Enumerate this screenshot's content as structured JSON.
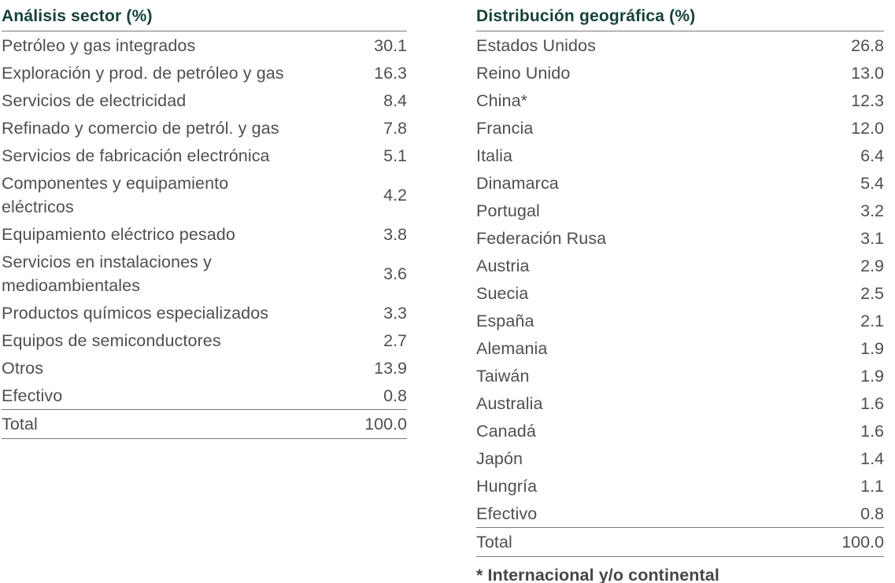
{
  "colors": {
    "heading": "#16423b",
    "body": "#4e4f51",
    "rule": "#7a7a7a",
    "background": "#ffffff"
  },
  "tables": [
    {
      "title": "Análisis sector (%)",
      "rows": [
        {
          "label": "Petróleo y gas integrados",
          "value": "30.1"
        },
        {
          "label": "Exploración y prod. de petróleo y gas",
          "value": "16.3"
        },
        {
          "label": "Servicios de electricidad",
          "value": "8.4"
        },
        {
          "label": "Refinado y comercio de petról. y gas",
          "value": "7.8"
        },
        {
          "label": "Servicios de fabricación electrónica",
          "value": "5.1"
        },
        {
          "label": "Componentes y equipamiento\neléctricos",
          "value": "4.2"
        },
        {
          "label": "Equipamiento eléctrico pesado",
          "value": "3.8"
        },
        {
          "label": "Servicios en instalaciones y\nmedioambientales",
          "value": "3.6"
        },
        {
          "label": "Productos químicos especializados",
          "value": "3.3"
        },
        {
          "label": "Equipos de semiconductores",
          "value": "2.7"
        },
        {
          "label": "Otros",
          "value": "13.9"
        },
        {
          "label": "Efectivo",
          "value": "0.8"
        }
      ],
      "total": {
        "label": "Total",
        "value": "100.0"
      }
    },
    {
      "title": "Distribución geográfica (%)",
      "rows": [
        {
          "label": "Estados Unidos",
          "value": "26.8"
        },
        {
          "label": "Reino Unido",
          "value": "13.0"
        },
        {
          "label": "China*",
          "value": "12.3"
        },
        {
          "label": "Francia",
          "value": "12.0"
        },
        {
          "label": "Italia",
          "value": "6.4"
        },
        {
          "label": "Dinamarca",
          "value": "5.4"
        },
        {
          "label": "Portugal",
          "value": "3.2"
        },
        {
          "label": "Federación Rusa",
          "value": "3.1"
        },
        {
          "label": "Austria",
          "value": "2.9"
        },
        {
          "label": "Suecia",
          "value": "2.5"
        },
        {
          "label": "España",
          "value": "2.1"
        },
        {
          "label": "Alemania",
          "value": "1.9"
        },
        {
          "label": "Taiwán",
          "value": "1.9"
        },
        {
          "label": "Australia",
          "value": "1.6"
        },
        {
          "label": "Canadá",
          "value": "1.6"
        },
        {
          "label": "Japón",
          "value": "1.4"
        },
        {
          "label": "Hungría",
          "value": "1.1"
        },
        {
          "label": "Efectivo",
          "value": "0.8"
        }
      ],
      "total": {
        "label": "Total",
        "value": "100.0"
      },
      "footnote": "* Internacional y/o continental"
    }
  ]
}
